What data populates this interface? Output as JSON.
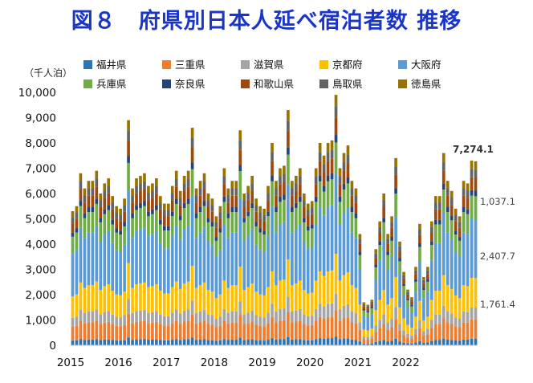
{
  "title": "図８　府県別日本人延べ宿泊者数 推移",
  "chart_data": {
    "type": "bar",
    "stacked": true,
    "unit": "（千人泊）",
    "ylim": [
      0,
      10000
    ],
    "yticks": [
      "0",
      "1,000",
      "2,000",
      "3,000",
      "4,000",
      "5,000",
      "6,000",
      "7,000",
      "8,000",
      "9,000",
      "10,000"
    ],
    "xticks": [
      "2015",
      "2016",
      "2017",
      "2018",
      "2019",
      "2020",
      "2021",
      "2022"
    ],
    "legend_position": "top",
    "annotations": [
      {
        "text": "7,274.1",
        "bold": true
      },
      {
        "text": "1,037.1"
      },
      {
        "text": "2,407.7"
      },
      {
        "text": "1,761.4"
      }
    ],
    "series": [
      {
        "name": "福井県",
        "color": "#2E75B6"
      },
      {
        "name": "三重県",
        "color": "#ED7D31"
      },
      {
        "name": "滋賀県",
        "color": "#A5A5A5"
      },
      {
        "name": "京都府",
        "color": "#FFC000"
      },
      {
        "name": "大阪府",
        "color": "#5B9BD5"
      },
      {
        "name": "兵庫県",
        "color": "#70AD47"
      },
      {
        "name": "奈良県",
        "color": "#264478"
      },
      {
        "name": "和歌山県",
        "color": "#9E480E"
      },
      {
        "name": "鳥取県",
        "color": "#636363"
      },
      {
        "name": "徳島県",
        "color": "#997300"
      }
    ],
    "totals": [
      5300,
      5500,
      6800,
      6200,
      6500,
      6500,
      6900,
      6000,
      6400,
      6600,
      5900,
      5500,
      5400,
      5800,
      8900,
      6200,
      6600,
      6700,
      6800,
      6300,
      6400,
      6600,
      5900,
      5600,
      5600,
      6300,
      6900,
      6100,
      6700,
      6900,
      8600,
      6200,
      6500,
      6800,
      6000,
      5800,
      5100,
      5500,
      7000,
      6200,
      6500,
      6500,
      8500,
      6000,
      6300,
      6700,
      5800,
      5500,
      5400,
      6300,
      8000,
      6500,
      7000,
      7100,
      9300,
      6500,
      6700,
      7000,
      6000,
      5600,
      5700,
      7000,
      8000,
      7500,
      8000,
      8100,
      9900,
      7000,
      7600,
      7900,
      6500,
      6200,
      4400,
      1700,
      1600,
      1800,
      3800,
      4900,
      6000,
      4400,
      5100,
      7400,
      4100,
      2900,
      2200,
      1900,
      3100,
      4800,
      2700,
      3100,
      4900,
      5900,
      5900,
      7600,
      6500,
      6100,
      5400,
      5100,
      6500,
      6400,
      7300,
      7274.1
    ],
    "shares": [
      0.035,
      0.105,
      0.065,
      0.16,
      0.32,
      0.125,
      0.03,
      0.07,
      0.045,
      0.045
    ]
  }
}
